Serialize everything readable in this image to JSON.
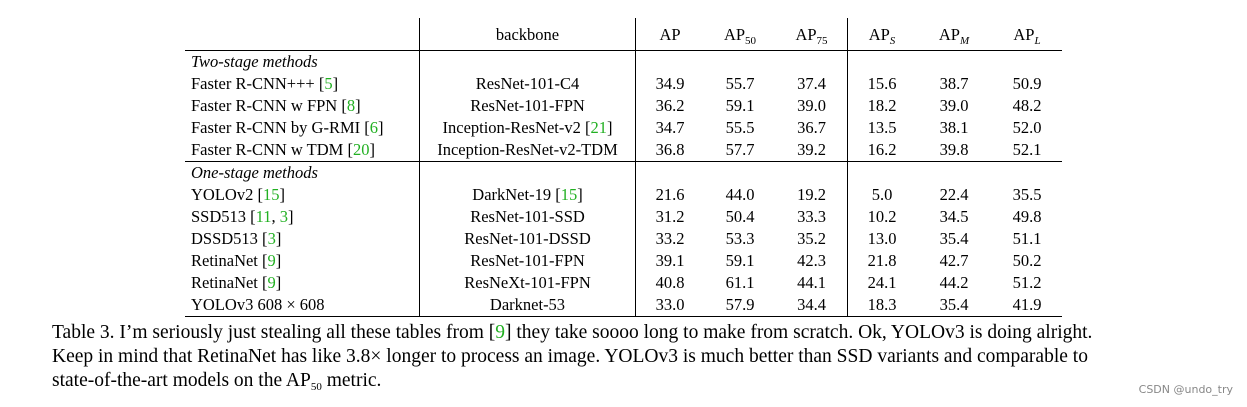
{
  "table": {
    "header": {
      "backbone": "backbone",
      "cols": [
        {
          "base": "AP",
          "sub": ""
        },
        {
          "base": "AP",
          "sub": "50"
        },
        {
          "base": "AP",
          "sub": "75"
        },
        {
          "base": "AP",
          "sub": "S"
        },
        {
          "base": "AP",
          "sub": "M"
        },
        {
          "base": "AP",
          "sub": "L"
        }
      ]
    },
    "sections": [
      {
        "title": "Two-stage methods",
        "rows": [
          {
            "method": "Faster R-CNN+++ [",
            "refs": [
              "5"
            ],
            "method_tail": "]",
            "backbone": "ResNet-101-C4",
            "bb_refs": [],
            "values": [
              "34.9",
              "55.7",
              "37.4",
              "15.6",
              "38.7",
              "50.9"
            ],
            "bold": []
          },
          {
            "method": "Faster R-CNN w FPN [",
            "refs": [
              "8"
            ],
            "method_tail": "]",
            "backbone": "ResNet-101-FPN",
            "bb_refs": [],
            "values": [
              "36.2",
              "59.1",
              "39.0",
              "18.2",
              "39.0",
              "48.2"
            ],
            "bold": []
          },
          {
            "method": "Faster R-CNN by G-RMI [",
            "refs": [
              "6"
            ],
            "method_tail": "]",
            "backbone": "Inception-ResNet-v2 [",
            "bb_refs": [
              "21"
            ],
            "values": [
              "34.7",
              "55.5",
              "36.7",
              "13.5",
              "38.1",
              "52.0"
            ],
            "bold": []
          },
          {
            "method": "Faster R-CNN w TDM [",
            "refs": [
              "20"
            ],
            "method_tail": "]",
            "backbone": "Inception-ResNet-v2-TDM",
            "bb_refs": [],
            "values": [
              "36.8",
              "57.7",
              "39.2",
              "16.2",
              "39.8",
              "52.1"
            ],
            "bold": [
              5
            ]
          }
        ]
      },
      {
        "title": "One-stage methods",
        "rows": [
          {
            "method": "YOLOv2 [",
            "refs": [
              "15"
            ],
            "method_tail": "]",
            "backbone": "DarkNet-19 [",
            "bb_refs": [
              "15"
            ],
            "values": [
              "21.6",
              "44.0",
              "19.2",
              "5.0",
              "22.4",
              "35.5"
            ],
            "bold": []
          },
          {
            "method": "SSD513 [",
            "refs": [
              "11",
              "3"
            ],
            "method_tail": "]",
            "backbone": "ResNet-101-SSD",
            "bb_refs": [],
            "values": [
              "31.2",
              "50.4",
              "33.3",
              "10.2",
              "34.5",
              "49.8"
            ],
            "bold": []
          },
          {
            "method": "DSSD513 [",
            "refs": [
              "3"
            ],
            "method_tail": "]",
            "backbone": "ResNet-101-DSSD",
            "bb_refs": [],
            "values": [
              "33.2",
              "53.3",
              "35.2",
              "13.0",
              "35.4",
              "51.1"
            ],
            "bold": []
          },
          {
            "method": "RetinaNet [",
            "refs": [
              "9"
            ],
            "method_tail": "]",
            "backbone": "ResNet-101-FPN",
            "bb_refs": [],
            "values": [
              "39.1",
              "59.1",
              "42.3",
              "21.8",
              "42.7",
              "50.2"
            ],
            "bold": []
          },
          {
            "method": "RetinaNet [",
            "refs": [
              "9"
            ],
            "method_tail": "]",
            "backbone": "ResNeXt-101-FPN",
            "bb_refs": [],
            "values": [
              "40.8",
              "61.1",
              "44.1",
              "24.1",
              "44.2",
              "51.2"
            ],
            "bold": [
              0,
              1,
              2,
              3,
              4
            ]
          },
          {
            "method": "YOLOv3 608 × 608",
            "refs": [],
            "method_tail": "",
            "backbone": "Darknet-53",
            "bb_refs": [],
            "values": [
              "33.0",
              "57.9",
              "34.4",
              "18.3",
              "35.4",
              "41.9"
            ],
            "bold": []
          }
        ]
      }
    ]
  },
  "caption": {
    "line1_a": "Table 3. I’m seriously just stealing all these tables from [",
    "line1_ref": "9",
    "line1_b": "] they take soooo long to make from scratch. Ok, YOLOv3 is doing alright.",
    "line2": "Keep in mind that RetinaNet has like 3.8× longer to process an image. YOLOv3 is much better than SSD variants and comparable to",
    "line3_a": "state-of-the-art models on the AP",
    "line3_sub": "50",
    "line3_b": " metric."
  },
  "watermark": "CSDN @undo_try",
  "colors": {
    "ref": "#22b022",
    "text": "#000000",
    "watermark": "#888888"
  }
}
